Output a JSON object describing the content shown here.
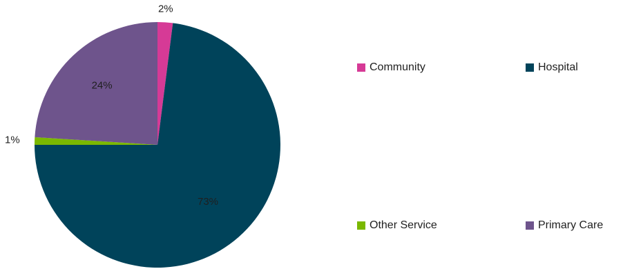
{
  "chart_data": {
    "type": "pie",
    "title": "",
    "slices": [
      {
        "name": "Community",
        "value": 2,
        "label": "2%",
        "color": "#d63a96"
      },
      {
        "name": "Hospital",
        "value": 73,
        "label": "73%",
        "color": "#00435a"
      },
      {
        "name": "Other Service",
        "value": 1,
        "label": "1%",
        "color": "#7ab800"
      },
      {
        "name": "Primary Care",
        "value": 24,
        "label": "24%",
        "color": "#6e548c"
      }
    ],
    "legend_position": "right"
  }
}
